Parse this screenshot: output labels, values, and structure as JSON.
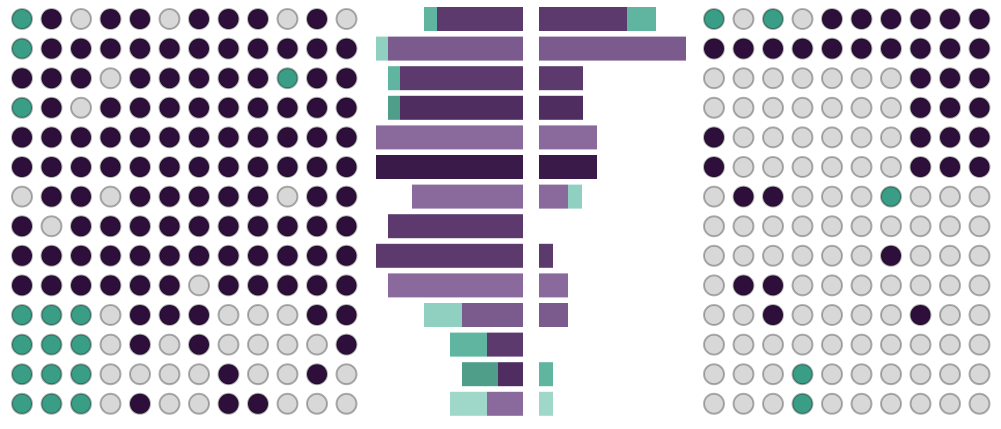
{
  "left_grid": {
    "rows": [
      [
        "#3a9e86",
        "#2e0f3c",
        "#d8d8d8",
        "#2e0f3c",
        "#2e0f3c",
        "#d8d8d8",
        "#2e0f3c",
        "#2e0f3c",
        "#2e0f3c",
        "#d8d8d8",
        "#2e0f3c",
        "#d8d8d8"
      ],
      [
        "#3a9e86",
        "#2e0f3c",
        "#2e0f3c",
        "#2e0f3c",
        "#2e0f3c",
        "#2e0f3c",
        "#2e0f3c",
        "#2e0f3c",
        "#2e0f3c",
        "#2e0f3c",
        "#2e0f3c",
        "#2e0f3c"
      ],
      [
        "#2e0f3c",
        "#2e0f3c",
        "#2e0f3c",
        "#d8d8d8",
        "#2e0f3c",
        "#2e0f3c",
        "#2e0f3c",
        "#2e0f3c",
        "#2e0f3c",
        "#3a9e86",
        "#2e0f3c",
        "#2e0f3c"
      ],
      [
        "#3a9e86",
        "#2e0f3c",
        "#d8d8d8",
        "#2e0f3c",
        "#2e0f3c",
        "#2e0f3c",
        "#2e0f3c",
        "#2e0f3c",
        "#2e0f3c",
        "#2e0f3c",
        "#2e0f3c",
        "#2e0f3c"
      ],
      [
        "#2e0f3c",
        "#2e0f3c",
        "#2e0f3c",
        "#2e0f3c",
        "#2e0f3c",
        "#2e0f3c",
        "#2e0f3c",
        "#2e0f3c",
        "#2e0f3c",
        "#2e0f3c",
        "#2e0f3c",
        "#2e0f3c"
      ],
      [
        "#2e0f3c",
        "#2e0f3c",
        "#2e0f3c",
        "#2e0f3c",
        "#2e0f3c",
        "#2e0f3c",
        "#2e0f3c",
        "#2e0f3c",
        "#2e0f3c",
        "#2e0f3c",
        "#2e0f3c",
        "#2e0f3c"
      ],
      [
        "#d8d8d8",
        "#2e0f3c",
        "#2e0f3c",
        "#d8d8d8",
        "#2e0f3c",
        "#2e0f3c",
        "#2e0f3c",
        "#2e0f3c",
        "#2e0f3c",
        "#d8d8d8",
        "#2e0f3c",
        "#2e0f3c"
      ],
      [
        "#2e0f3c",
        "#d8d8d8",
        "#2e0f3c",
        "#2e0f3c",
        "#2e0f3c",
        "#2e0f3c",
        "#2e0f3c",
        "#2e0f3c",
        "#2e0f3c",
        "#2e0f3c",
        "#2e0f3c",
        "#2e0f3c"
      ],
      [
        "#2e0f3c",
        "#2e0f3c",
        "#2e0f3c",
        "#2e0f3c",
        "#2e0f3c",
        "#2e0f3c",
        "#2e0f3c",
        "#2e0f3c",
        "#2e0f3c",
        "#2e0f3c",
        "#2e0f3c",
        "#2e0f3c"
      ],
      [
        "#2e0f3c",
        "#2e0f3c",
        "#2e0f3c",
        "#2e0f3c",
        "#2e0f3c",
        "#2e0f3c",
        "#d8d8d8",
        "#2e0f3c",
        "#2e0f3c",
        "#2e0f3c",
        "#2e0f3c",
        "#2e0f3c"
      ],
      [
        "#3a9e86",
        "#3a9e86",
        "#3a9e86",
        "#d8d8d8",
        "#2e0f3c",
        "#2e0f3c",
        "#2e0f3c",
        "#d8d8d8",
        "#d8d8d8",
        "#d8d8d8",
        "#2e0f3c",
        "#2e0f3c"
      ],
      [
        "#3a9e86",
        "#3a9e86",
        "#3a9e86",
        "#d8d8d8",
        "#2e0f3c",
        "#d8d8d8",
        "#2e0f3c",
        "#d8d8d8",
        "#d8d8d8",
        "#d8d8d8",
        "#d8d8d8",
        "#2e0f3c"
      ],
      [
        "#3a9e86",
        "#3a9e86",
        "#3a9e86",
        "#d8d8d8",
        "#d8d8d8",
        "#d8d8d8",
        "#d8d8d8",
        "#2e0f3c",
        "#d8d8d8",
        "#d8d8d8",
        "#2e0f3c",
        "#d8d8d8"
      ],
      [
        "#3a9e86",
        "#3a9e86",
        "#3a9e86",
        "#d8d8d8",
        "#2e0f3c",
        "#d8d8d8",
        "#d8d8d8",
        "#2e0f3c",
        "#2e0f3c",
        "#d8d8d8",
        "#d8d8d8",
        "#d8d8d8"
      ]
    ]
  },
  "left_bars": [
    [
      {
        "value": 13,
        "color": "#5fb5a0"
      },
      {
        "value": 86,
        "color": "#5c3a6e"
      }
    ],
    [
      {
        "value": 12,
        "color": "#8fd0c0"
      },
      {
        "value": 135,
        "color": "#7b5a8e"
      }
    ],
    [
      {
        "value": 12,
        "color": "#5fb5a0"
      },
      {
        "value": 123,
        "color": "#5c3a6e"
      }
    ],
    [
      {
        "value": 12,
        "color": "#4f9e8a"
      },
      {
        "value": 123,
        "color": "#4f2d60"
      }
    ],
    [
      {
        "value": 147,
        "color": "#8a6a9c"
      }
    ],
    [
      {
        "value": 147,
        "color": "#3a1a48"
      }
    ],
    [
      {
        "value": 111,
        "color": "#8a6a9c"
      }
    ],
    [
      {
        "value": 135,
        "color": "#5c3a6e"
      }
    ],
    [
      {
        "value": 147,
        "color": "#5c3a6e"
      }
    ],
    [
      {
        "value": 135,
        "color": "#8a6a9c"
      }
    ],
    [
      {
        "value": 38,
        "color": "#8fd0c0"
      },
      {
        "value": 61,
        "color": "#7b5a8e"
      }
    ],
    [
      {
        "value": 37,
        "color": "#5fb5a0"
      },
      {
        "value": 36,
        "color": "#5c3a6e"
      }
    ],
    [
      {
        "value": 36,
        "color": "#4f9e8a"
      },
      {
        "value": 25,
        "color": "#4f2d60"
      }
    ],
    [
      {
        "value": 37,
        "color": "#9fd8c8"
      },
      {
        "value": 36,
        "color": "#8a6a9c"
      }
    ]
  ],
  "right_bars": [
    [
      {
        "value": 88,
        "color": "#5c3a6e"
      },
      {
        "value": 29,
        "color": "#5fb5a0"
      }
    ],
    [
      {
        "value": 147,
        "color": "#7b5a8e"
      }
    ],
    [
      {
        "value": 44,
        "color": "#5c3a6e"
      }
    ],
    [
      {
        "value": 44,
        "color": "#4f2d60"
      }
    ],
    [
      {
        "value": 58,
        "color": "#8a6a9c"
      }
    ],
    [
      {
        "value": 58,
        "color": "#3a1a48"
      }
    ],
    [
      {
        "value": 29,
        "color": "#8a6a9c"
      },
      {
        "value": 14,
        "color": "#8fd0c0"
      }
    ],
    [],
    [
      {
        "value": 14,
        "color": "#5c3a6e"
      }
    ],
    [
      {
        "value": 29,
        "color": "#8a6a9c"
      }
    ],
    [
      {
        "value": 29,
        "color": "#7b5a8e"
      }
    ],
    [],
    [
      {
        "value": 14,
        "color": "#5fb5a0"
      }
    ],
    [
      {
        "value": 14,
        "color": "#9fd8c8"
      }
    ]
  ],
  "right_grid": {
    "rows": [
      [
        "#3a9e86",
        "#d8d8d8",
        "#3a9e86",
        "#d8d8d8",
        "#2e0f3c",
        "#2e0f3c",
        "#2e0f3c",
        "#2e0f3c",
        "#2e0f3c",
        "#2e0f3c"
      ],
      [
        "#2e0f3c",
        "#2e0f3c",
        "#2e0f3c",
        "#2e0f3c",
        "#2e0f3c",
        "#2e0f3c",
        "#2e0f3c",
        "#2e0f3c",
        "#2e0f3c",
        "#2e0f3c"
      ],
      [
        "#d8d8d8",
        "#d8d8d8",
        "#d8d8d8",
        "#d8d8d8",
        "#d8d8d8",
        "#d8d8d8",
        "#d8d8d8",
        "#2e0f3c",
        "#2e0f3c",
        "#2e0f3c"
      ],
      [
        "#d8d8d8",
        "#d8d8d8",
        "#d8d8d8",
        "#d8d8d8",
        "#d8d8d8",
        "#d8d8d8",
        "#d8d8d8",
        "#2e0f3c",
        "#2e0f3c",
        "#2e0f3c"
      ],
      [
        "#2e0f3c",
        "#d8d8d8",
        "#d8d8d8",
        "#d8d8d8",
        "#d8d8d8",
        "#d8d8d8",
        "#d8d8d8",
        "#2e0f3c",
        "#2e0f3c",
        "#2e0f3c"
      ],
      [
        "#2e0f3c",
        "#d8d8d8",
        "#d8d8d8",
        "#d8d8d8",
        "#d8d8d8",
        "#d8d8d8",
        "#d8d8d8",
        "#2e0f3c",
        "#2e0f3c",
        "#2e0f3c"
      ],
      [
        "#d8d8d8",
        "#2e0f3c",
        "#2e0f3c",
        "#d8d8d8",
        "#d8d8d8",
        "#d8d8d8",
        "#3a9e86",
        "#d8d8d8",
        "#d8d8d8",
        "#d8d8d8"
      ],
      [
        "#d8d8d8",
        "#d8d8d8",
        "#d8d8d8",
        "#d8d8d8",
        "#d8d8d8",
        "#d8d8d8",
        "#d8d8d8",
        "#d8d8d8",
        "#d8d8d8",
        "#d8d8d8"
      ],
      [
        "#d8d8d8",
        "#d8d8d8",
        "#d8d8d8",
        "#d8d8d8",
        "#d8d8d8",
        "#d8d8d8",
        "#2e0f3c",
        "#d8d8d8",
        "#d8d8d8",
        "#d8d8d8"
      ],
      [
        "#d8d8d8",
        "#2e0f3c",
        "#2e0f3c",
        "#d8d8d8",
        "#d8d8d8",
        "#d8d8d8",
        "#d8d8d8",
        "#d8d8d8",
        "#d8d8d8",
        "#d8d8d8"
      ],
      [
        "#d8d8d8",
        "#d8d8d8",
        "#2e0f3c",
        "#d8d8d8",
        "#d8d8d8",
        "#d8d8d8",
        "#d8d8d8",
        "#2e0f3c",
        "#d8d8d8",
        "#d8d8d8"
      ],
      [
        "#d8d8d8",
        "#d8d8d8",
        "#d8d8d8",
        "#d8d8d8",
        "#d8d8d8",
        "#d8d8d8",
        "#d8d8d8",
        "#d8d8d8",
        "#d8d8d8",
        "#d8d8d8"
      ],
      [
        "#d8d8d8",
        "#d8d8d8",
        "#d8d8d8",
        "#3a9e86",
        "#d8d8d8",
        "#d8d8d8",
        "#d8d8d8",
        "#d8d8d8",
        "#d8d8d8",
        "#d8d8d8"
      ],
      [
        "#d8d8d8",
        "#d8d8d8",
        "#d8d8d8",
        "#3a9e86",
        "#d8d8d8",
        "#d8d8d8",
        "#d8d8d8",
        "#d8d8d8",
        "#d8d8d8",
        "#d8d8d8"
      ]
    ]
  }
}
